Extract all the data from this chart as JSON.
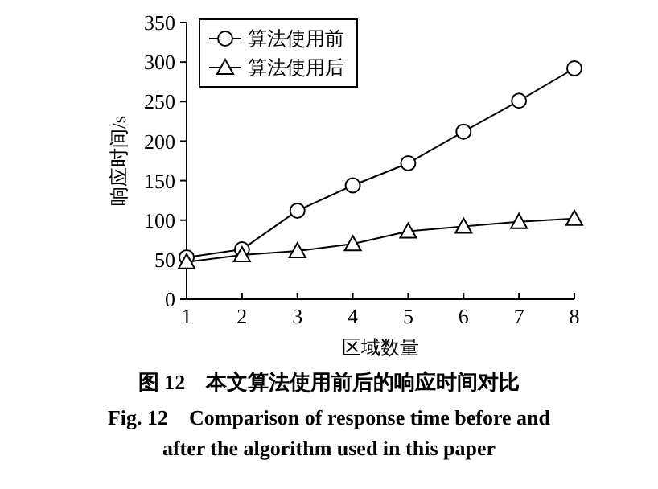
{
  "chart_data": {
    "type": "line",
    "title": "图 12　本文算法使用前后的响应时间对比",
    "subtitle": "Fig. 12　Comparison of response time before and after the algorithm used in this paper",
    "xlabel": "区域数量",
    "ylabel": "响应时间/s",
    "x": [
      1,
      2,
      3,
      4,
      5,
      6,
      7,
      8
    ],
    "xlim": [
      1,
      8
    ],
    "xticks": [
      1,
      2,
      3,
      4,
      5,
      6,
      7,
      8
    ],
    "ylim": [
      0,
      350
    ],
    "yticks": [
      0,
      50,
      100,
      150,
      200,
      250,
      300,
      350
    ],
    "series": [
      {
        "name": "算法使用前",
        "color": "#000000",
        "marker": "circle",
        "values": [
          53,
          63,
          112,
          144,
          172,
          212,
          251,
          292
        ]
      },
      {
        "name": "算法使用后",
        "color": "#000000",
        "marker": "triangle",
        "values": [
          47,
          56,
          61,
          70,
          86,
          92,
          98,
          102
        ]
      }
    ],
    "legend": "top left",
    "grid": false,
    "line_style": "solid"
  }
}
